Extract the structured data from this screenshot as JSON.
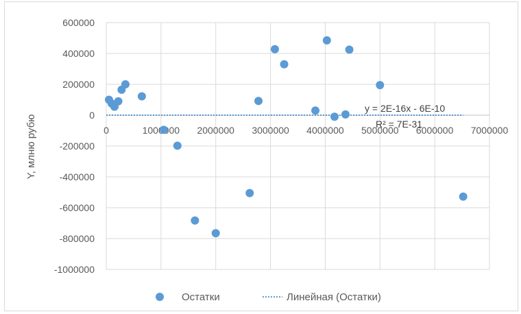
{
  "chart_data": {
    "type": "scatter",
    "ylabel": "Y, млню рубю",
    "xlabel": "",
    "xlim": [
      0,
      7000000
    ],
    "ylim": [
      -1000000,
      600000
    ],
    "x_ticks": [
      0,
      1000000,
      2000000,
      3000000,
      4000000,
      5000000,
      6000000,
      7000000
    ],
    "y_ticks": [
      600000,
      400000,
      200000,
      0,
      -200000,
      -400000,
      -600000,
      -800000,
      -1000000
    ],
    "x_tick_labels": [
      "0",
      "1000000",
      "2000000",
      "3000000",
      "4000000",
      "5000000",
      "6000000",
      "7000000"
    ],
    "y_tick_labels": [
      "600000",
      "400000",
      "200000",
      "0",
      "-200000",
      "-400000",
      "-600000",
      "-800000",
      "-1000000"
    ],
    "grid": true,
    "legend_position": "bottom",
    "series": [
      {
        "name": "Остатки",
        "color": "#5b9bd5",
        "points": [
          [
            50000,
            100000
          ],
          [
            100000,
            75000
          ],
          [
            150000,
            55000
          ],
          [
            220000,
            90000
          ],
          [
            280000,
            165000
          ],
          [
            350000,
            200000
          ],
          [
            650000,
            122000
          ],
          [
            1050000,
            -95000
          ],
          [
            1300000,
            -198000
          ],
          [
            1620000,
            -683000
          ],
          [
            2000000,
            -765000
          ],
          [
            2620000,
            -505000
          ],
          [
            2780000,
            92000
          ],
          [
            3080000,
            428000
          ],
          [
            3250000,
            330000
          ],
          [
            3820000,
            30000
          ],
          [
            4030000,
            485000
          ],
          [
            4170000,
            -10000
          ],
          [
            4370000,
            5000
          ],
          [
            4440000,
            425000
          ],
          [
            5000000,
            195000
          ],
          [
            6520000,
            -528000
          ]
        ]
      }
    ],
    "trendline": {
      "name": "Линейная (Остатки)",
      "color": "#5b9bd5",
      "style": "dotted",
      "x_range": [
        0,
        6520000
      ],
      "y_value": 0,
      "equation": "y = 2E-16x - 6E-10",
      "r_squared": "R² = 7E-31"
    }
  }
}
